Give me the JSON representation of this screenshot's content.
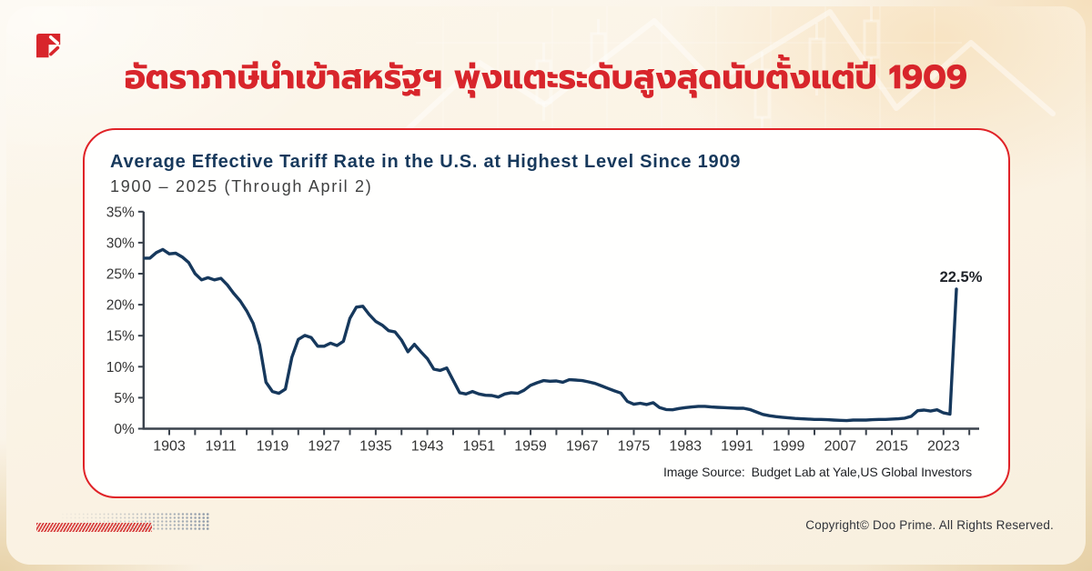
{
  "colors": {
    "accent_red": "#d8252b",
    "navy": "#17395c",
    "card_border": "#e02227",
    "line": "#16385c",
    "page_bg": "#faf2e3"
  },
  "logo": {
    "name": "doo-prime-logo-mark",
    "color": "#d8252b"
  },
  "headline": {
    "text": "อัตราภาษีนำเข้าสหรัฐฯ พุ่งแตะระดับสูงสุดนับตั้งแต่ปี 1909",
    "color": "#d8252b"
  },
  "chart_data": {
    "type": "line",
    "title": "Average Effective Tariff Rate in the U.S. at Highest Level Since 1909",
    "subtitle": "1900 – 2025 (Through April 2)",
    "x": [
      1900,
      1901,
      1902,
      1903,
      1904,
      1905,
      1906,
      1907,
      1908,
      1909,
      1910,
      1911,
      1912,
      1913,
      1914,
      1915,
      1916,
      1917,
      1918,
      1919,
      1920,
      1921,
      1922,
      1923,
      1924,
      1925,
      1926,
      1927,
      1928,
      1929,
      1930,
      1931,
      1932,
      1933,
      1934,
      1935,
      1936,
      1937,
      1938,
      1939,
      1940,
      1941,
      1942,
      1943,
      1944,
      1945,
      1946,
      1947,
      1948,
      1949,
      1950,
      1951,
      1952,
      1953,
      1954,
      1955,
      1956,
      1957,
      1958,
      1959,
      1960,
      1961,
      1962,
      1963,
      1964,
      1965,
      1966,
      1967,
      1968,
      1969,
      1970,
      1971,
      1972,
      1973,
      1974,
      1975,
      1976,
      1977,
      1978,
      1979,
      1980,
      1981,
      1982,
      1983,
      1984,
      1985,
      1986,
      1987,
      1988,
      1989,
      1990,
      1991,
      1992,
      1993,
      1994,
      1995,
      1996,
      1997,
      1998,
      1999,
      2000,
      2001,
      2002,
      2003,
      2004,
      2005,
      2006,
      2007,
      2008,
      2009,
      2010,
      2011,
      2012,
      2013,
      2014,
      2015,
      2016,
      2017,
      2018,
      2019,
      2020,
      2021,
      2022,
      2023,
      2024,
      2025
    ],
    "values": [
      27.5,
      28.4,
      28.9,
      28.2,
      28.3,
      27.7,
      26.8,
      25.0,
      24.0,
      24.35,
      24.0,
      24.25,
      23.2,
      21.8,
      20.6,
      19.0,
      17.0,
      13.5,
      7.5,
      6.0,
      5.7,
      6.4,
      11.5,
      14.4,
      15.05,
      14.7,
      13.3,
      13.3,
      13.8,
      13.4,
      14.1,
      17.8,
      19.6,
      19.75,
      18.4,
      17.3,
      16.7,
      15.8,
      15.6,
      14.3,
      12.4,
      13.6,
      12.4,
      11.3,
      9.6,
      9.4,
      9.8,
      7.8,
      5.8,
      5.6,
      6.0,
      5.6,
      5.4,
      5.35,
      5.1,
      5.6,
      5.8,
      5.7,
      6.2,
      7.0,
      7.4,
      7.75,
      7.65,
      7.7,
      7.5,
      7.9,
      7.85,
      7.75,
      7.55,
      7.3,
      6.9,
      6.5,
      6.1,
      5.75,
      4.4,
      3.95,
      4.1,
      3.9,
      4.2,
      3.4,
      3.1,
      3.05,
      3.25,
      3.4,
      3.5,
      3.6,
      3.6,
      3.5,
      3.45,
      3.4,
      3.35,
      3.3,
      3.3,
      3.1,
      2.7,
      2.3,
      2.1,
      1.95,
      1.85,
      1.75,
      1.65,
      1.6,
      1.55,
      1.5,
      1.5,
      1.45,
      1.4,
      1.35,
      1.3,
      1.4,
      1.4,
      1.4,
      1.45,
      1.5,
      1.5,
      1.55,
      1.6,
      1.7,
      2.0,
      2.9,
      3.0,
      2.85,
      3.05,
      2.55,
      2.35,
      22.5
    ],
    "series_name": "Average effective tariff rate",
    "xlabel": "",
    "ylabel": "",
    "ylim": [
      0,
      35
    ],
    "ytick_step": 5,
    "ytick_suffix": "%",
    "xtick_labels": [
      1903,
      1911,
      1919,
      1927,
      1935,
      1943,
      1951,
      1959,
      1967,
      1975,
      1983,
      1991,
      1999,
      2007,
      2015,
      2023
    ],
    "xtick_minor_step": 4,
    "grid": false,
    "legend_position": "none",
    "line_color": "#16385c",
    "annotation": {
      "text": "22.5%",
      "year": 2025,
      "value": 22.5
    }
  },
  "source_note": "Image Source：Budget Lab at Yale,US Global Investors",
  "footer": {
    "copyright": "Copyright© Doo Prime. All Rights Reserved."
  }
}
